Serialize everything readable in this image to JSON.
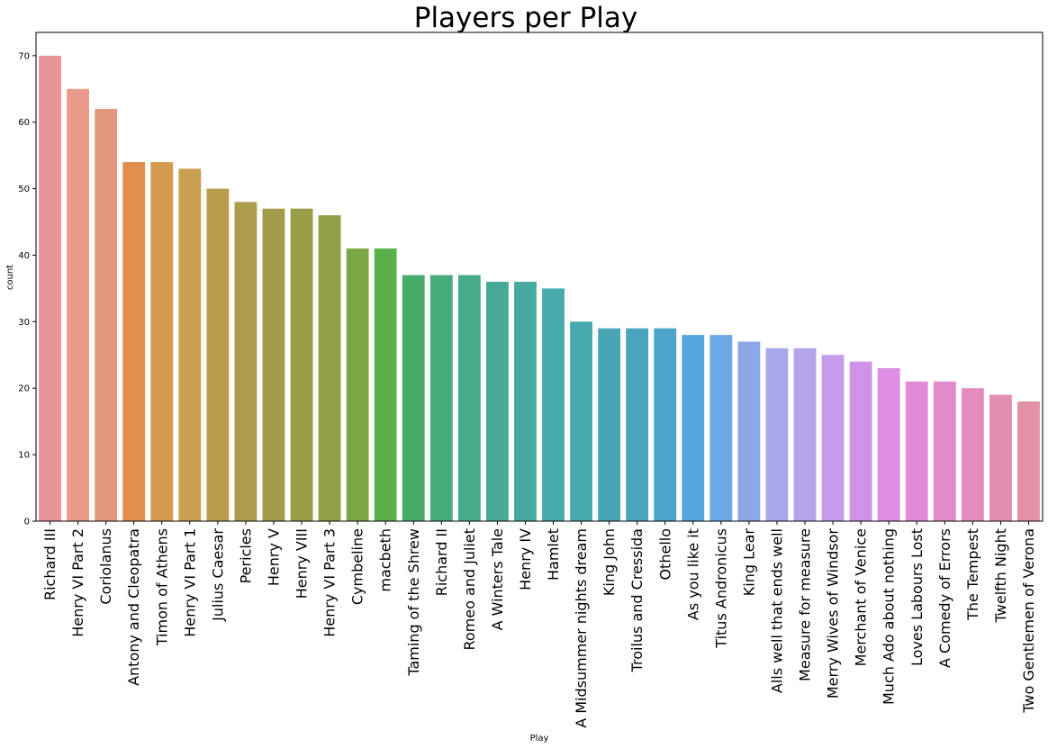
{
  "chart_data": {
    "type": "bar",
    "title": "Players per Play",
    "xlabel": "Play",
    "ylabel": "count",
    "ylim": [
      0,
      73.5
    ],
    "yticks": [
      0,
      10,
      20,
      30,
      40,
      50,
      60,
      70
    ],
    "grid": false,
    "legend": "none",
    "categories": [
      "Richard III",
      "Henry VI Part 2",
      "Coriolanus",
      "Antony and Cleopatra",
      "Timon of Athens",
      "Henry VI Part 1",
      "Julius Caesar",
      "Pericles",
      "Henry V",
      "Henry VIII",
      "Henry VI Part 3",
      "Cymbeline",
      "macbeth",
      "Taming of the Shrew",
      "Richard II",
      "Romeo and Juliet",
      "A Winters Tale",
      "Henry IV",
      "Hamlet",
      "A Midsummer nights dream",
      "King John",
      "Troilus and Cressida",
      "Othello",
      "As you like it",
      "Titus Andronicus",
      "King Lear",
      "Alls well that ends well",
      "Measure for measure",
      "Merry Wives of Windsor",
      "Merchant of Venice",
      "Much Ado about nothing",
      "Loves Labours Lost",
      "A Comedy of Errors",
      "The Tempest",
      "Twelfth Night",
      "Two Gentlemen of Verona"
    ],
    "values": [
      70,
      65,
      62,
      54,
      54,
      53,
      50,
      48,
      47,
      47,
      46,
      41,
      41,
      37,
      37,
      37,
      36,
      36,
      35,
      30,
      29,
      29,
      29,
      28,
      28,
      27,
      26,
      26,
      25,
      24,
      23,
      21,
      21,
      20,
      19,
      18
    ],
    "colors": [
      "#e8959a",
      "#e89a8b",
      "#e3977f",
      "#e08f4f",
      "#d49b4f",
      "#c8a04f",
      "#b99c4c",
      "#ad9c4b",
      "#a29c4a",
      "#999d48",
      "#8fa046",
      "#7ba646",
      "#5bb04a",
      "#48ac69",
      "#47ab7b",
      "#46ab8a",
      "#46aa96",
      "#46aaa1",
      "#47a9aa",
      "#47a8ae",
      "#49a5b6",
      "#4ba4be",
      "#4ea3c9",
      "#56a4dd",
      "#6aa9e6",
      "#8ba7e6",
      "#a8a8ea",
      "#b5a3eb",
      "#c59bea",
      "#d193e8",
      "#de8de5",
      "#e08ad7",
      "#e28bca",
      "#e48cbd",
      "#e38eb0",
      "#e391a6"
    ]
  }
}
